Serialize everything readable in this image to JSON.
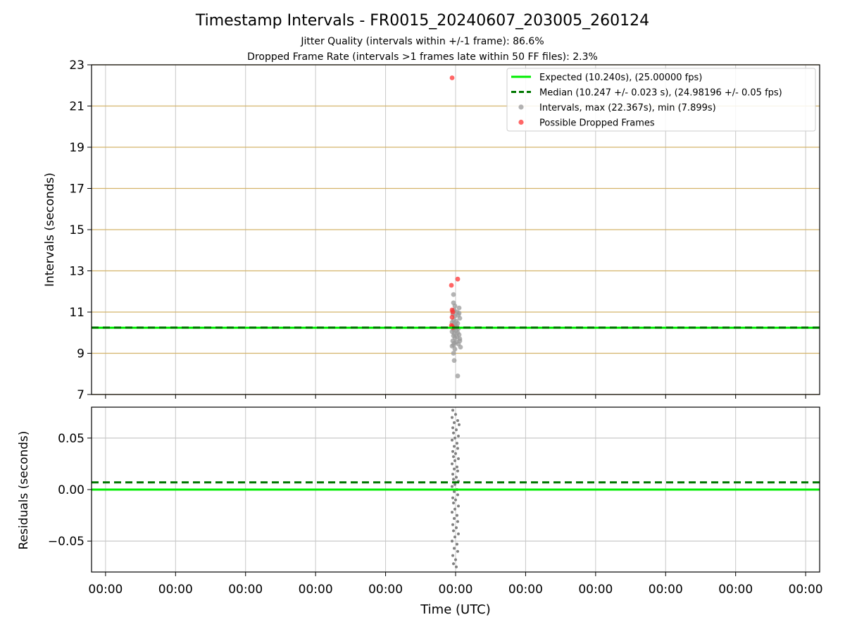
{
  "title": "Timestamp Intervals - FR0015_20240607_203005_260124",
  "subtitle_1": "Jitter Quality (intervals within +/-1 frame): 86.6%",
  "subtitle_2": "Dropped Frame Rate (intervals >1 frames late within 50 FF files): 2.3%",
  "colors": {
    "expected": "#00ee00",
    "median": "#007700",
    "intervals": "#999999",
    "dropped": "#ff3333",
    "residuals": "#808080",
    "hgrid_top": "#d4b36a",
    "grid": "#c8c8c8"
  },
  "chart_data": [
    {
      "type": "scatter",
      "ylabel": "Intervals (seconds)",
      "ylim": [
        7,
        23
      ],
      "yticks": [
        7,
        9,
        11,
        13,
        15,
        17,
        19,
        21,
        23
      ],
      "grid": true,
      "legend_position": "top-right",
      "xlim": [
        -0.2,
        10.2
      ],
      "xticks": [
        0,
        1,
        2,
        3,
        4,
        5,
        6,
        7,
        8,
        9,
        10
      ],
      "lines": [
        {
          "name": "Expected (10.240s), (25.00000 fps)",
          "y": 10.24,
          "style": "solid",
          "color_key": "expected"
        },
        {
          "name": "Median (10.247 +/- 0.023 s), (24.98196 +/- 0.05 fps)",
          "y": 10.247,
          "style": "dashed",
          "color_key": "median"
        }
      ],
      "series": [
        {
          "name": "Intervals, max (22.367s), min (7.899s)",
          "color_key": "intervals",
          "points": [
            [
              4.97,
              11.85
            ],
            [
              4.97,
              11.45
            ],
            [
              4.99,
              11.3
            ],
            [
              5.05,
              11.2
            ],
            [
              4.98,
              11.1
            ],
            [
              5.02,
              11.0
            ],
            [
              4.96,
              10.9
            ],
            [
              5.04,
              10.85
            ],
            [
              4.99,
              10.8
            ],
            [
              5.06,
              10.7
            ],
            [
              4.97,
              10.6
            ],
            [
              5.01,
              10.55
            ],
            [
              4.95,
              10.5
            ],
            [
              5.03,
              10.45
            ],
            [
              4.98,
              10.4
            ],
            [
              5.0,
              10.35
            ],
            [
              4.96,
              10.3
            ],
            [
              5.02,
              10.28
            ],
            [
              4.99,
              10.25
            ],
            [
              5.04,
              10.2
            ],
            [
              4.97,
              10.15
            ],
            [
              5.01,
              10.1
            ],
            [
              4.95,
              10.05
            ],
            [
              5.03,
              10.0
            ],
            [
              4.98,
              9.95
            ],
            [
              5.05,
              9.9
            ],
            [
              4.97,
              9.85
            ],
            [
              5.02,
              9.8
            ],
            [
              4.99,
              9.75
            ],
            [
              5.06,
              9.7
            ],
            [
              4.96,
              9.6
            ],
            [
              5.01,
              9.55
            ],
            [
              4.98,
              9.5
            ],
            [
              5.04,
              9.45
            ],
            [
              4.97,
              9.4
            ],
            [
              4.95,
              9.35
            ],
            [
              5.07,
              9.3
            ],
            [
              4.99,
              9.2
            ],
            [
              4.97,
              9.0
            ],
            [
              4.98,
              8.65
            ],
            [
              5.03,
              7.9
            ],
            [
              5.06,
              9.6
            ],
            [
              5.05,
              10.95
            ],
            [
              4.96,
              11.05
            ]
          ]
        },
        {
          "name": "Possible Dropped Frames",
          "color_key": "dropped",
          "points": [
            [
              4.95,
              22.367
            ],
            [
              4.94,
              12.3
            ],
            [
              5.03,
              12.6
            ],
            [
              4.95,
              11.1
            ],
            [
              4.96,
              11.0
            ],
            [
              4.95,
              10.75
            ],
            [
              4.94,
              10.35
            ],
            [
              4.95,
              10.3
            ],
            [
              4.96,
              10.25
            ]
          ]
        }
      ]
    },
    {
      "type": "scatter",
      "xlabel": "Time (UTC)",
      "ylabel": "Residuals (seconds)",
      "ylim": [
        -0.08,
        0.08
      ],
      "yticks": [
        -0.05,
        0.0,
        0.05
      ],
      "ytick_labels": [
        "−0.05",
        "0.00",
        "0.05"
      ],
      "grid": true,
      "xlim": [
        -0.2,
        10.2
      ],
      "xticks": [
        0,
        1,
        2,
        3,
        4,
        5,
        6,
        7,
        8,
        9,
        10
      ],
      "xtick_labels": [
        "00:00",
        "00:00",
        "00:00",
        "00:00",
        "00:00",
        "00:00",
        "00:00",
        "00:00",
        "00:00",
        "00:00",
        "00:00"
      ],
      "lines": [
        {
          "y": 0.0,
          "style": "solid",
          "color_key": "expected"
        },
        {
          "y": 0.007,
          "style": "dashed",
          "color_key": "median"
        }
      ],
      "series": [
        {
          "color_key": "residuals",
          "points": [
            [
              4.96,
              0.077
            ],
            [
              5.0,
              0.073
            ],
            [
              4.95,
              0.07
            ],
            [
              5.03,
              0.067
            ],
            [
              4.98,
              0.065
            ],
            [
              5.05,
              0.063
            ],
            [
              4.96,
              0.06
            ],
            [
              5.01,
              0.058
            ],
            [
              4.97,
              0.055
            ],
            [
              5.04,
              0.052
            ],
            [
              4.99,
              0.05
            ],
            [
              4.95,
              0.048
            ],
            [
              5.02,
              0.045
            ],
            [
              4.98,
              0.042
            ],
            [
              5.03,
              0.04
            ],
            [
              4.96,
              0.037
            ],
            [
              5.0,
              0.035
            ],
            [
              4.97,
              0.032
            ],
            [
              5.04,
              0.03
            ],
            [
              4.99,
              0.028
            ],
            [
              4.95,
              0.025
            ],
            [
              5.02,
              0.022
            ],
            [
              4.98,
              0.02
            ],
            [
              5.03,
              0.018
            ],
            [
              4.96,
              0.015
            ],
            [
              5.01,
              0.012
            ],
            [
              4.97,
              0.01
            ],
            [
              5.04,
              0.008
            ],
            [
              4.99,
              0.005
            ],
            [
              4.95,
              0.003
            ],
            [
              5.02,
              0.0
            ],
            [
              4.98,
              -0.002
            ],
            [
              5.03,
              -0.005
            ],
            [
              4.96,
              -0.008
            ],
            [
              5.0,
              -0.01
            ],
            [
              4.97,
              -0.013
            ],
            [
              5.04,
              -0.016
            ],
            [
              4.99,
              -0.019
            ],
            [
              4.95,
              -0.022
            ],
            [
              5.02,
              -0.025
            ],
            [
              4.98,
              -0.028
            ],
            [
              5.03,
              -0.031
            ],
            [
              4.96,
              -0.034
            ],
            [
              5.01,
              -0.037
            ],
            [
              4.97,
              -0.04
            ],
            [
              5.04,
              -0.043
            ],
            [
              4.99,
              -0.046
            ],
            [
              4.95,
              -0.05
            ],
            [
              5.02,
              -0.053
            ],
            [
              4.98,
              -0.057
            ],
            [
              5.03,
              -0.06
            ],
            [
              4.96,
              -0.064
            ],
            [
              5.0,
              -0.068
            ],
            [
              4.97,
              -0.072
            ],
            [
              5.01,
              -0.075
            ]
          ]
        }
      ]
    }
  ],
  "legend": [
    {
      "label": "Expected (10.240s), (25.00000 fps)",
      "kind": "line",
      "color_key": "expected"
    },
    {
      "label": "Median (10.247 +/- 0.023 s), (24.98196 +/- 0.05 fps)",
      "kind": "dashed",
      "color_key": "median"
    },
    {
      "label": "Intervals, max (22.367s), min (7.899s)",
      "kind": "marker",
      "color_key": "intervals"
    },
    {
      "label": "Possible Dropped Frames",
      "kind": "marker",
      "color_key": "dropped"
    }
  ]
}
